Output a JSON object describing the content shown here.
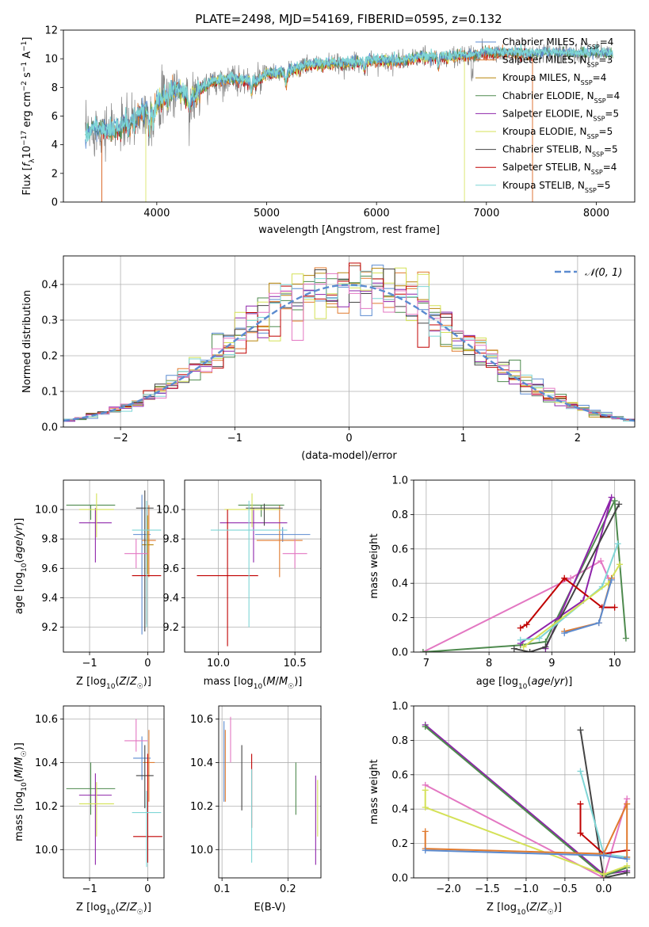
{
  "title": "PLATE=2498, MJD=54169, FIBERID=0595, z=0.132",
  "colors": {
    "Chabrier MILES": "#5b8bd0",
    "Salpeter MILES": "#e07a2e",
    "Kroupa MILES": "#b8860b",
    "Chabrier ELODIE": "#4e8a4e",
    "Salpeter ELODIE": "#8e24aa",
    "Kroupa ELODIE": "#d4e157",
    "Chabrier STELIB": "#444444",
    "Salpeter STELIB": "#c00000",
    "Kroupa STELIB": "#7fd6d6",
    "extra": "#e377c2",
    "data": "#808080",
    "gauss": "#5b8bd0"
  },
  "chart_data": [
    {
      "type": "line",
      "panel": "spectrum",
      "xlabel": "wavelength [Angstrom, rest frame]",
      "ylabel": "Flux [f_λ 10^-17 erg cm^-2 s^-1 A^-1]",
      "xlim": [
        3150,
        8350
      ],
      "ylim": [
        0,
        12
      ],
      "xticks": [
        4000,
        5000,
        6000,
        7000,
        8000
      ],
      "yticks": [
        0,
        2,
        4,
        6,
        8,
        10,
        12
      ],
      "legend_position": "right",
      "legend": [
        {
          "name": "Chabrier MILES, N",
          "sub": "SSP",
          "val": "=4"
        },
        {
          "name": "Salpeter MILES, N",
          "sub": "SSP",
          "val": "=3"
        },
        {
          "name": "Kroupa MILES, N",
          "sub": "SSP",
          "val": "=4"
        },
        {
          "name": "Chabrier ELODIE, N",
          "sub": "SSP",
          "val": "=4"
        },
        {
          "name": "Salpeter ELODIE, N",
          "sub": "SSP",
          "val": "=5"
        },
        {
          "name": "Kroupa ELODIE, N",
          "sub": "SSP",
          "val": "=5"
        },
        {
          "name": "Chabrier STELIB, N",
          "sub": "SSP",
          "val": "=5"
        },
        {
          "name": "Salpeter STELIB, N",
          "sub": "SSP",
          "val": "=4"
        },
        {
          "name": "Kroupa STELIB, N",
          "sub": "SSP",
          "val": "=5"
        }
      ],
      "continuum": [
        [
          3350,
          4.6
        ],
        [
          3450,
          5.2
        ],
        [
          3550,
          5.0
        ],
        [
          3650,
          5.1
        ],
        [
          3750,
          5.6
        ],
        [
          3850,
          6.2
        ],
        [
          3950,
          6.6
        ],
        [
          4050,
          7.2
        ],
        [
          4150,
          7.8
        ],
        [
          4250,
          7.6
        ],
        [
          4350,
          7.5
        ],
        [
          4500,
          8.4
        ],
        [
          4700,
          8.6
        ],
        [
          4900,
          8.3
        ],
        [
          5000,
          8.9
        ],
        [
          5200,
          9.1
        ],
        [
          5400,
          9.6
        ],
        [
          5600,
          9.6
        ],
        [
          5800,
          9.7
        ],
        [
          6000,
          9.9
        ],
        [
          6200,
          9.8
        ],
        [
          6400,
          10.1
        ],
        [
          6600,
          10.1
        ],
        [
          6800,
          10.2
        ],
        [
          7000,
          10.4
        ],
        [
          7200,
          10.4
        ],
        [
          7400,
          10.3
        ],
        [
          7600,
          10.4
        ],
        [
          7800,
          10.3
        ],
        [
          8000,
          10.4
        ],
        [
          8100,
          10.3
        ]
      ],
      "model_cutoffs": {
        "Salpeter STELIB": [
          3500,
          7420
        ],
        "Kroupa ELODIE": [
          3900,
          6800
        ],
        "Salpeter MILES": [
          3500,
          7420
        ]
      }
    },
    {
      "type": "line",
      "panel": "residuals",
      "xlabel": "(data-model)/error",
      "ylabel": "Normed distribution",
      "xlim": [
        -2.5,
        2.5
      ],
      "ylim": [
        0,
        0.48
      ],
      "xticks": [
        -2,
        -1,
        0,
        1,
        2
      ],
      "yticks": [
        0.0,
        0.1,
        0.2,
        0.3,
        0.4
      ],
      "legend": "𝒩(0, 1)",
      "bin_width": 0.1
    },
    {
      "type": "scatter",
      "panel": "age-Z",
      "xlabel": "Z [log10(Z/Z☉)]",
      "ylabel": "age  [log10(age/yr)]",
      "xlim": [
        -1.45,
        0.28
      ],
      "ylim": [
        9.03,
        10.2
      ],
      "xticks": [
        -1,
        0
      ],
      "yticks": [
        9.2,
        9.4,
        9.6,
        9.8,
        10.0
      ],
      "points": [
        {
          "model": "Chabrier MILES",
          "x": -0.1,
          "y": 9.83,
          "xerr": 0.15,
          "yerr": [
            0.68,
            0.27
          ]
        },
        {
          "model": "Salpeter MILES",
          "x": 0.02,
          "y": 9.79,
          "xerr": 0.12,
          "yerr": [
            0.25,
            0.24
          ]
        },
        {
          "model": "Kroupa MILES",
          "x": 0.0,
          "y": 9.76,
          "xerr": 0.1,
          "yerr": [
            0.2,
            0.2
          ]
        },
        {
          "model": "Chabrier ELODIE",
          "x": -0.98,
          "y": 10.03,
          "xerr": 0.42,
          "yerr": [
            0.1,
            0.0
          ]
        },
        {
          "model": "Salpeter ELODIE",
          "x": -0.9,
          "y": 9.91,
          "xerr": 0.28,
          "yerr": [
            0.27,
            0.1
          ]
        },
        {
          "model": "Kroupa ELODIE",
          "x": -0.88,
          "y": 10.0,
          "xerr": 0.3,
          "yerr": [
            0.19,
            0.11
          ]
        },
        {
          "model": "Chabrier STELIB",
          "x": -0.05,
          "y": 10.01,
          "xerr": 0.15,
          "yerr": [
            0.84,
            0.12
          ]
        },
        {
          "model": "Salpeter STELIB",
          "x": -0.02,
          "y": 9.55,
          "xerr": 0.25,
          "yerr": [
            0.33,
            0.45
          ]
        },
        {
          "model": "Kroupa STELIB",
          "x": -0.02,
          "y": 9.86,
          "xerr": 0.25,
          "yerr": [
            0.66,
            0.2
          ]
        },
        {
          "model": "extra",
          "x": -0.2,
          "y": 9.7,
          "xerr": 0.2,
          "yerr": [
            0.1,
            0.1
          ]
        }
      ]
    },
    {
      "type": "scatter",
      "panel": "age-mass",
      "xlabel": "mass [log10(M/M☉)]",
      "ylabel": "",
      "xlim": [
        9.78,
        10.67
      ],
      "ylim": [
        9.03,
        10.2
      ],
      "xticks": [
        10.0,
        10.5
      ],
      "yticks": [
        9.2,
        9.4,
        9.6,
        9.8,
        10.0
      ],
      "points": [
        {
          "model": "Chabrier MILES",
          "x": 10.42,
          "y": 9.83,
          "xerr": 0.18,
          "yerr": [
            0.05,
            0.05
          ]
        },
        {
          "model": "Salpeter MILES",
          "x": 10.4,
          "y": 9.79,
          "xerr": 0.15,
          "yerr": [
            0.25,
            0.24
          ]
        },
        {
          "model": "Chabrier ELODIE",
          "x": 10.28,
          "y": 10.03,
          "xerr": 0.15,
          "yerr": [
            0.08,
            0.0
          ]
        },
        {
          "model": "Salpeter ELODIE",
          "x": 10.23,
          "y": 9.91,
          "xerr": 0.22,
          "yerr": [
            0.27,
            0.1
          ]
        },
        {
          "model": "Kroupa ELODIE",
          "x": 10.22,
          "y": 10.0,
          "xerr": 0.18,
          "yerr": [
            0.12,
            0.11
          ]
        },
        {
          "model": "Chabrier STELIB",
          "x": 10.3,
          "y": 10.01,
          "xerr": 0.12,
          "yerr": [
            0.12,
            0.03
          ]
        },
        {
          "model": "Salpeter STELIB",
          "x": 10.06,
          "y": 9.55,
          "xerr": 0.2,
          "yerr": [
            0.48,
            0.45
          ]
        },
        {
          "model": "Kroupa STELIB",
          "x": 10.2,
          "y": 9.86,
          "xerr": 0.25,
          "yerr": [
            0.66,
            0.2
          ]
        },
        {
          "model": "extra",
          "x": 10.5,
          "y": 9.7,
          "xerr": 0.08,
          "yerr": [
            0.1,
            0.1
          ]
        }
      ]
    },
    {
      "type": "line",
      "panel": "weight-age",
      "xlabel": "age  [log10(age/yr)]",
      "ylabel": "mass weight",
      "xlim": [
        6.8,
        10.32
      ],
      "ylim": [
        0,
        1.0
      ],
      "xticks": [
        7,
        8,
        9,
        10
      ],
      "yticks": [
        0.0,
        0.2,
        0.4,
        0.6,
        0.8,
        1.0
      ],
      "series": [
        {
          "model": "extra",
          "points": [
            [
              6.95,
              0.0
            ],
            [
              9.3,
              0.43
            ],
            [
              9.78,
              0.53
            ],
            [
              9.9,
              0.43
            ]
          ]
        },
        {
          "model": "Chabrier ELODIE",
          "points": [
            [
              6.95,
              0.0
            ],
            [
              8.5,
              0.04
            ],
            [
              8.9,
              0.06
            ],
            [
              10.0,
              0.88
            ],
            [
              10.18,
              0.08
            ]
          ]
        },
        {
          "model": "Salpeter ELODIE",
          "points": [
            [
              8.9,
              0.02
            ],
            [
              9.95,
              0.9
            ],
            [
              9.5,
              0.3
            ],
            [
              8.5,
              0.05
            ]
          ]
        },
        {
          "model": "Chabrier STELIB",
          "points": [
            [
              8.4,
              0.02
            ],
            [
              8.65,
              0.0
            ],
            [
              8.9,
              0.03
            ],
            [
              10.07,
              0.86
            ]
          ]
        },
        {
          "model": "Salpeter STELIB",
          "points": [
            [
              8.5,
              0.14
            ],
            [
              8.6,
              0.16
            ],
            [
              9.2,
              0.43
            ],
            [
              9.8,
              0.26
            ],
            [
              10.0,
              0.26
            ]
          ]
        },
        {
          "model": "Kroupa STELIB",
          "points": [
            [
              8.5,
              0.07
            ],
            [
              8.8,
              0.08
            ],
            [
              9.8,
              0.38
            ],
            [
              10.05,
              0.63
            ]
          ]
        },
        {
          "model": "Kroupa ELODIE",
          "points": [
            [
              8.55,
              0.03
            ],
            [
              9.9,
              0.4
            ],
            [
              10.08,
              0.51
            ]
          ]
        },
        {
          "model": "Salpeter MILES",
          "points": [
            [
              9.2,
              0.12
            ],
            [
              9.75,
              0.17
            ],
            [
              9.95,
              0.43
            ]
          ]
        },
        {
          "model": "Chabrier MILES",
          "points": [
            [
              9.2,
              0.11
            ],
            [
              9.75,
              0.17
            ],
            [
              9.95,
              0.42
            ]
          ]
        }
      ]
    },
    {
      "type": "scatter",
      "panel": "mass-Z",
      "xlabel": "Z [log10(Z/Z☉)]",
      "ylabel": "mass [log10(M/M☉)]",
      "xlim": [
        -1.45,
        0.28
      ],
      "ylim": [
        9.87,
        10.66
      ],
      "xticks": [
        -1,
        0
      ],
      "yticks": [
        10.0,
        10.2,
        10.4,
        10.6
      ],
      "points": [
        {
          "model": "Chabrier MILES",
          "x": -0.1,
          "y": 10.42,
          "xerr": 0.15,
          "yerr": [
            0.1,
            0.1
          ]
        },
        {
          "model": "Salpeter MILES",
          "x": 0.02,
          "y": 10.4,
          "xerr": 0.1,
          "yerr": [
            0.18,
            0.15
          ]
        },
        {
          "model": "Chabrier ELODIE",
          "x": -0.98,
          "y": 10.28,
          "xerr": 0.42,
          "yerr": [
            0.12,
            0.12
          ]
        },
        {
          "model": "Salpeter ELODIE",
          "x": -0.9,
          "y": 10.25,
          "xerr": 0.28,
          "yerr": [
            0.32,
            0.1
          ]
        },
        {
          "model": "Kroupa ELODIE",
          "x": -0.88,
          "y": 10.21,
          "xerr": 0.3,
          "yerr": [
            0.15,
            0.1
          ]
        },
        {
          "model": "Chabrier STELIB",
          "x": -0.05,
          "y": 10.34,
          "xerr": 0.15,
          "yerr": [
            0.15,
            0.14
          ]
        },
        {
          "model": "Salpeter STELIB",
          "x": 0.0,
          "y": 10.06,
          "xerr": 0.25,
          "yerr": [
            0.12,
            0.38
          ]
        },
        {
          "model": "Kroupa STELIB",
          "x": -0.02,
          "y": 10.17,
          "xerr": 0.25,
          "yerr": [
            0.25,
            0.1
          ]
        },
        {
          "model": "extra",
          "x": -0.2,
          "y": 10.5,
          "xerr": 0.2,
          "yerr": [
            0.05,
            0.1
          ]
        }
      ]
    },
    {
      "type": "scatter",
      "panel": "mass-ebv",
      "xlabel": "E(B-V)",
      "ylabel": "",
      "xlim": [
        0.095,
        0.25
      ],
      "ylim": [
        9.87,
        10.66
      ],
      "xticks": [
        0.1,
        0.2
      ],
      "yticks": [
        10.0,
        10.2,
        10.4,
        10.6
      ],
      "points": [
        {
          "model": "Chabrier MILES",
          "x": 0.103,
          "y": 10.42,
          "yerr": [
            0.2,
            0.17
          ]
        },
        {
          "model": "Salpeter MILES",
          "x": 0.105,
          "y": 10.4,
          "yerr": [
            0.18,
            0.15
          ]
        },
        {
          "model": "extra",
          "x": 0.113,
          "y": 10.5,
          "yerr": [
            0.1,
            0.11
          ]
        },
        {
          "model": "Chabrier STELIB",
          "x": 0.13,
          "y": 10.34,
          "yerr": [
            0.16,
            0.14
          ]
        },
        {
          "model": "Salpeter STELIB",
          "x": 0.145,
          "y": 10.3,
          "yerr": [
            0.2,
            0.14
          ]
        },
        {
          "model": "Kroupa STELIB",
          "x": 0.145,
          "y": 10.17,
          "yerr": [
            0.23,
            0.2
          ]
        },
        {
          "model": "Chabrier ELODIE",
          "x": 0.212,
          "y": 10.28,
          "yerr": [
            0.12,
            0.12
          ]
        },
        {
          "model": "Salpeter ELODIE",
          "x": 0.242,
          "y": 10.13,
          "yerr": [
            0.2,
            0.21
          ]
        },
        {
          "model": "Kroupa ELODIE",
          "x": 0.245,
          "y": 10.18,
          "yerr": [
            0.12,
            0.14
          ]
        }
      ]
    },
    {
      "type": "line",
      "panel": "weight-Z",
      "xlabel": "Z [log10(Z/Z☉)]",
      "ylabel": "mass weight",
      "xlim": [
        -2.45,
        0.4
      ],
      "ylim": [
        0,
        1.0
      ],
      "xticks": [
        -2.0,
        -1.5,
        -1.0,
        -0.5,
        0.0
      ],
      "yticks": [
        0.0,
        0.2,
        0.4,
        0.6,
        0.8,
        1.0
      ],
      "series": [
        {
          "model": "Salpeter ELODIE",
          "points": [
            [
              -2.3,
              0.89
            ],
            [
              0.0,
              0.02
            ],
            [
              0.3,
              0.04
            ]
          ]
        },
        {
          "model": "Chabrier ELODIE",
          "points": [
            [
              -2.3,
              0.88
            ],
            [
              0.0,
              0.01
            ],
            [
              0.3,
              0.06
            ]
          ]
        },
        {
          "model": "Chabrier STELIB",
          "points": [
            [
              -0.3,
              0.86
            ],
            [
              0.0,
              0.0
            ],
            [
              0.3,
              0.03
            ]
          ]
        },
        {
          "model": "Kroupa STELIB",
          "points": [
            [
              -0.3,
              0.62
            ],
            [
              0.0,
              0.14
            ],
            [
              0.3,
              0.12
            ]
          ]
        },
        {
          "model": "extra",
          "points": [
            [
              -2.3,
              0.54
            ],
            [
              0.0,
              0.0
            ],
            [
              0.3,
              0.46
            ]
          ]
        },
        {
          "model": "Kroupa ELODIE",
          "points": [
            [
              -2.3,
              0.51
            ],
            [
              -2.3,
              0.41
            ],
            [
              0.0,
              0.02
            ],
            [
              0.3,
              0.07
            ]
          ]
        },
        {
          "model": "Salpeter STELIB",
          "points": [
            [
              -0.3,
              0.43
            ],
            [
              -0.3,
              0.26
            ],
            [
              0.0,
              0.14
            ],
            [
              0.3,
              0.16
            ]
          ]
        },
        {
          "model": "Salpeter MILES",
          "points": [
            [
              -2.3,
              0.27
            ],
            [
              -2.3,
              0.17
            ],
            [
              0.0,
              0.14
            ],
            [
              0.3,
              0.43
            ],
            [
              0.3,
              0.12
            ]
          ]
        },
        {
          "model": "Chabrier MILES",
          "points": [
            [
              -2.3,
              0.16
            ],
            [
              0.0,
              0.13
            ],
            [
              0.3,
              0.11
            ]
          ]
        }
      ]
    }
  ]
}
